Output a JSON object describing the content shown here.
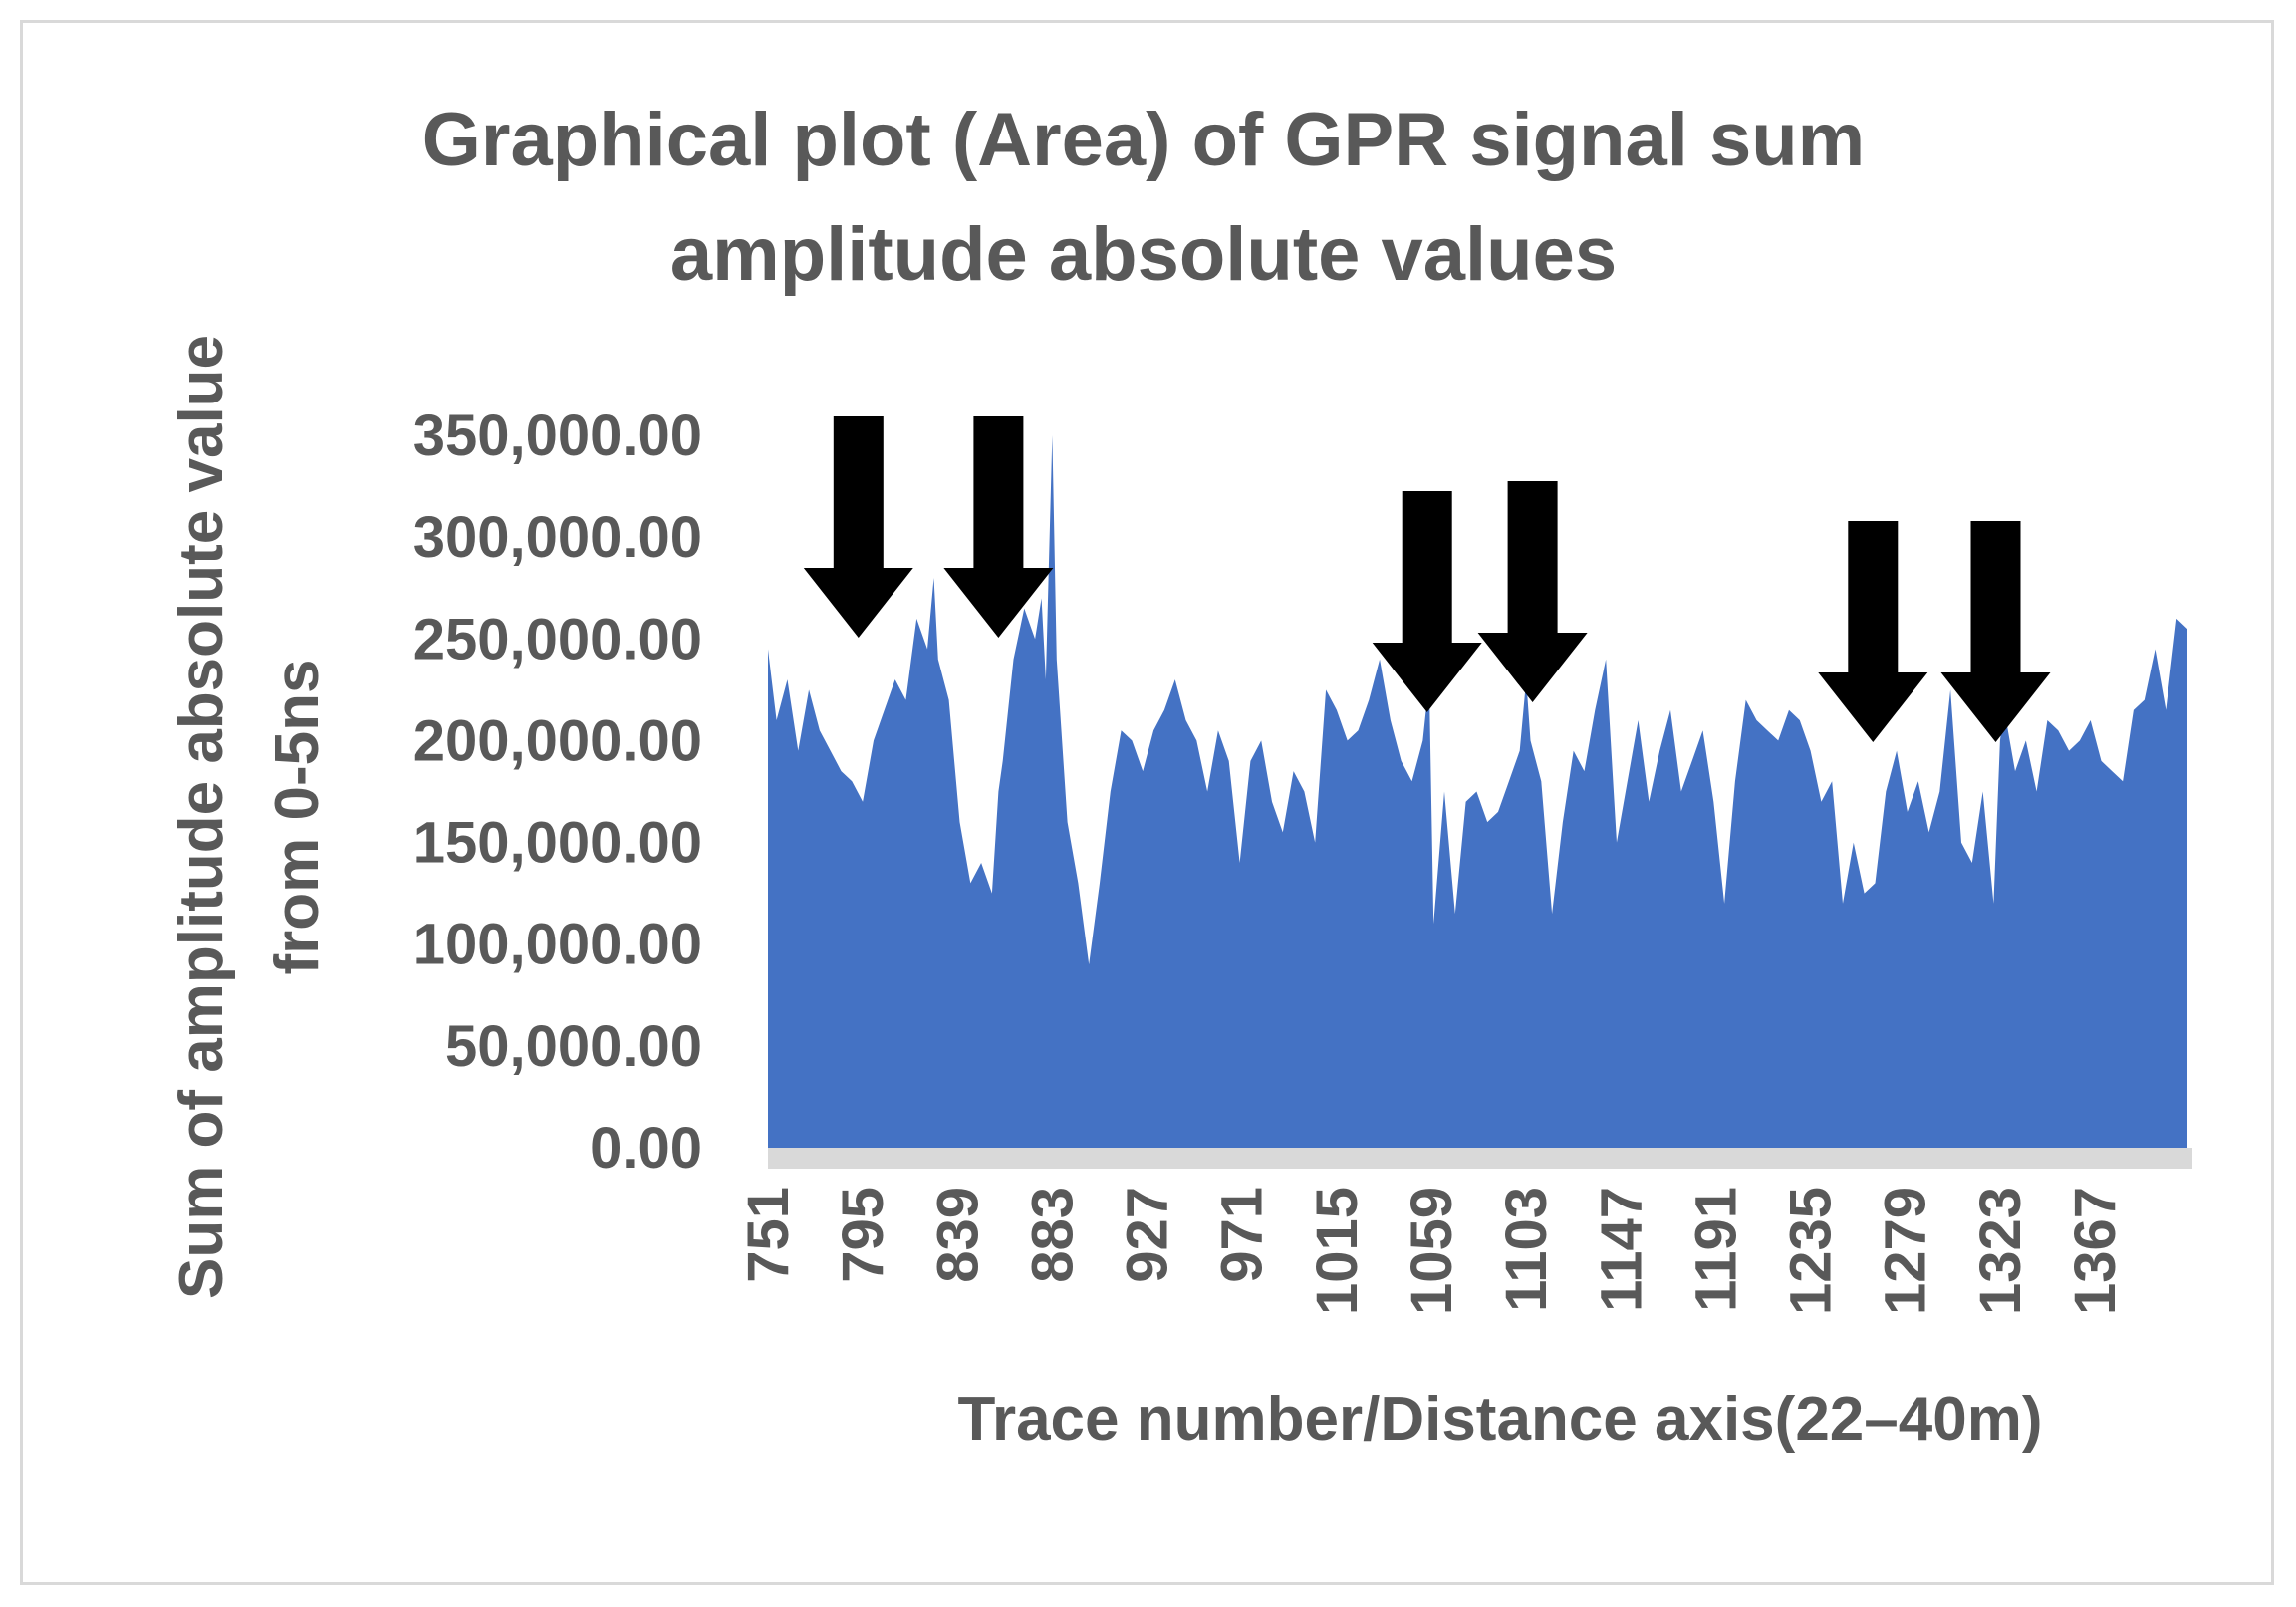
{
  "chart_data": {
    "type": "area",
    "title_lines": [
      "Graphical plot (Area) of GPR signal sum",
      "amplitude absolute values"
    ],
    "xlabel": "Trace number/Distance axis(22–40m)",
    "ylabel_lines": [
      "Sum of amplitude absolute value",
      "from 0-5ns"
    ],
    "x_ticks": [
      "751",
      "795",
      "839",
      "883",
      "927",
      "971",
      "1015",
      "1059",
      "1103",
      "1147",
      "1191",
      "1235",
      "1279",
      "1323",
      "1367"
    ],
    "y_ticks": [
      "0.00",
      "50,000.00",
      "100,000.00",
      "150,000.00",
      "200,000.00",
      "250,000.00",
      "300,000.00",
      "350,000.00"
    ],
    "ylim": [
      0,
      350000
    ],
    "xlim": [
      751,
      1410
    ],
    "grid": false,
    "legend": "none",
    "fill_color": "#4472c4",
    "floor_color": "#d9d9d9",
    "arrow_color": "#000000",
    "series": [
      {
        "x": [
          751,
          755,
          760,
          765,
          770,
          775,
          780,
          785,
          790,
          795,
          800,
          805,
          810,
          815,
          820,
          825,
          828,
          830,
          835,
          840,
          845,
          850,
          855,
          858,
          860,
          865,
          870,
          875,
          878,
          880,
          883,
          885,
          890,
          895,
          900,
          905,
          910,
          915,
          920,
          925,
          930,
          935,
          940,
          945,
          950,
          955,
          960,
          965,
          970,
          975,
          980,
          985,
          990,
          995,
          1000,
          1005,
          1010,
          1015,
          1020,
          1025,
          1030,
          1035,
          1040,
          1045,
          1050,
          1055,
          1058,
          1060,
          1065,
          1070,
          1075,
          1080,
          1085,
          1090,
          1095,
          1100,
          1103,
          1105,
          1110,
          1115,
          1120,
          1125,
          1130,
          1135,
          1140,
          1145,
          1150,
          1155,
          1160,
          1165,
          1170,
          1175,
          1180,
          1185,
          1190,
          1195,
          1200,
          1205,
          1210,
          1215,
          1220,
          1225,
          1230,
          1235,
          1240,
          1245,
          1250,
          1255,
          1260,
          1265,
          1270,
          1275,
          1280,
          1285,
          1290,
          1295,
          1300,
          1305,
          1310,
          1315,
          1320,
          1323,
          1325,
          1330,
          1335,
          1340,
          1345,
          1350,
          1355,
          1360,
          1365,
          1370,
          1375,
          1380,
          1385,
          1390,
          1395,
          1400,
          1405,
          1410
        ],
        "values": [
          245000,
          210000,
          230000,
          195000,
          225000,
          205000,
          195000,
          185000,
          180000,
          170000,
          200000,
          215000,
          230000,
          220000,
          260000,
          245000,
          280000,
          240000,
          220000,
          160000,
          130000,
          140000,
          125000,
          175000,
          190000,
          240000,
          265000,
          250000,
          270000,
          230000,
          350000,
          240000,
          160000,
          130000,
          90000,
          130000,
          175000,
          205000,
          200000,
          185000,
          205000,
          215000,
          230000,
          210000,
          200000,
          175000,
          205000,
          190000,
          140000,
          190000,
          200000,
          170000,
          155000,
          185000,
          175000,
          150000,
          225000,
          215000,
          200000,
          205000,
          220000,
          240000,
          210000,
          190000,
          180000,
          200000,
          230000,
          110000,
          175000,
          115000,
          170000,
          175000,
          160000,
          165000,
          180000,
          195000,
          230000,
          200000,
          180000,
          115000,
          160000,
          195000,
          185000,
          215000,
          240000,
          150000,
          180000,
          210000,
          170000,
          195000,
          215000,
          175000,
          190000,
          205000,
          170000,
          120000,
          180000,
          220000,
          210000,
          205000,
          200000,
          215000,
          210000,
          195000,
          170000,
          180000,
          120000,
          150000,
          125000,
          130000,
          175000,
          195000,
          165000,
          180000,
          155000,
          175000,
          225000,
          150000,
          140000,
          175000,
          120000,
          200000,
          215000,
          185000,
          200000,
          175000,
          210000,
          205000,
          195000,
          200000,
          210000,
          190000,
          185000,
          180000,
          215000,
          220000,
          245000,
          215000,
          260000,
          255000
        ]
      }
    ],
    "arrows_at_trace": [
      793,
      858,
      1057,
      1106,
      1264,
      1321
    ]
  }
}
